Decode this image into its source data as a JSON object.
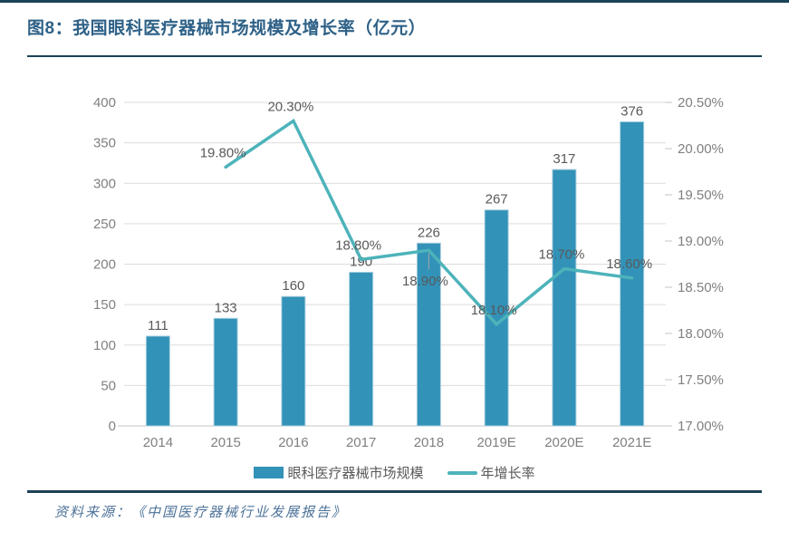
{
  "figure": {
    "title": "图8：我国眼科医疗器械市场规模及增长率（亿元）",
    "source": "资料来源：《中国医疗器械行业发展报告》"
  },
  "colors": {
    "bar": "#3292B8",
    "bar_edge": "#A9CFDE",
    "line": "#4DB3BA",
    "title": "#2E6187",
    "rule": "#1B4257",
    "grid": "#DCDCDC",
    "baseline": "#C6C6C6",
    "axis_text": "#808080",
    "data_label": "#595959",
    "source_text": "#4D7299",
    "leader": "#A6A6A6"
  },
  "chart_data": {
    "type": "bar+line combo",
    "categories": [
      "2014",
      "2015",
      "2016",
      "2017",
      "2018",
      "2019E",
      "2020E",
      "2021E"
    ],
    "series": [
      {
        "name": "眼科医疗器械市场规模",
        "type": "bar",
        "axis": "left",
        "values": [
          111,
          133,
          160,
          190,
          226,
          267,
          317,
          376
        ],
        "labels": [
          "111",
          "133",
          "160",
          "190",
          "226",
          "267",
          "317",
          "376"
        ]
      },
      {
        "name": "年增长率",
        "type": "line",
        "axis": "right",
        "values": [
          null,
          19.8,
          20.3,
          18.8,
          18.9,
          18.1,
          18.7,
          18.6
        ],
        "labels": [
          null,
          "19.80%",
          "20.30%",
          "18.80%",
          "18.90%",
          "18.10%",
          "18.70%",
          "18.60%"
        ],
        "label_positions": [
          null,
          "above",
          "above",
          "above",
          "below",
          "above",
          "above",
          "above"
        ]
      }
    ],
    "left_axis": {
      "min": 0,
      "max": 400,
      "step": 50,
      "ticks": [
        "400",
        "350",
        "300",
        "250",
        "200",
        "150",
        "100",
        "50",
        "0"
      ]
    },
    "right_axis": {
      "min": 17,
      "max": 20.5,
      "step": 0.5,
      "ticks": [
        "20.50%",
        "20.00%",
        "19.50%",
        "19.00%",
        "18.50%",
        "18.00%",
        "17.50%",
        "17.00%"
      ]
    },
    "legend": [
      {
        "label": "眼科医疗器械市场规模",
        "swatch": "bar"
      },
      {
        "label": "年增长率",
        "swatch": "line"
      }
    ],
    "grid": "horizontal",
    "legend_position": "bottom-center"
  }
}
